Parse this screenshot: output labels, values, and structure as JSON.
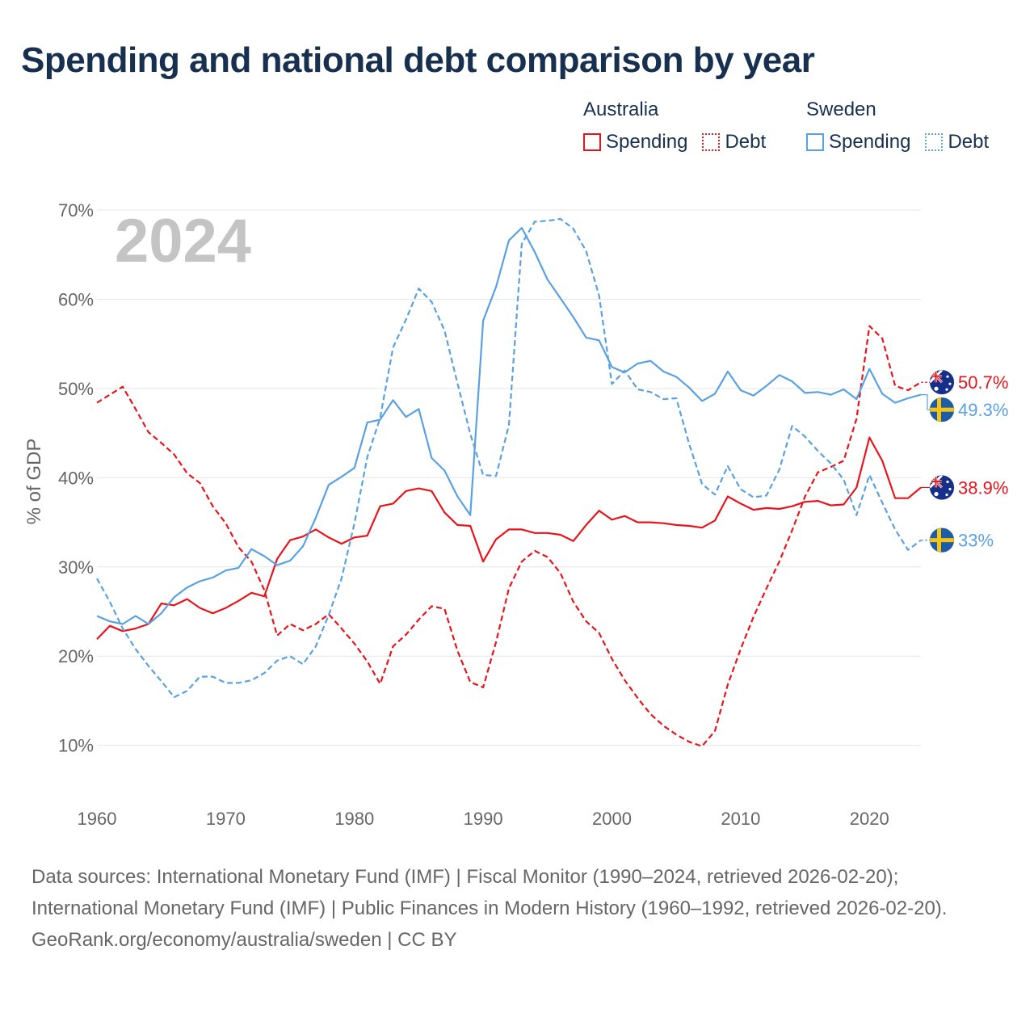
{
  "title": "Spending and national debt comparison by year",
  "legend": {
    "groups": [
      {
        "country": "Australia",
        "spending_label": "Spending",
        "debt_label": "Debt",
        "color": "#e8141b"
      },
      {
        "country": "Sweden",
        "spending_label": "Spending",
        "debt_label": "Debt",
        "color": "#5aa1e3"
      }
    ]
  },
  "year_watermark": "2024",
  "footer": {
    "sources": "Data sources: International Monetary Fund (IMF) | Fiscal Monitor (1990–2024, retrieved 2026-02-20); International Monetary Fund (IMF) | Public Finances in Modern History (1960–1992, retrieved 2026-02-20).",
    "credit": "GeoRank.org/economy/australia/sweden | CC BY"
  },
  "chart_data": {
    "type": "line",
    "title": "Spending and national debt comparison by year",
    "xlabel": "",
    "ylabel": "% of GDP",
    "xlim": [
      1960,
      2024
    ],
    "ylim": [
      3,
      70
    ],
    "xticks": [
      1960,
      1970,
      1980,
      1990,
      2000,
      2010,
      2020
    ],
    "yticks": [
      10,
      20,
      30,
      40,
      50,
      60,
      70
    ],
    "ytick_labels": [
      "10%",
      "20%",
      "30%",
      "40%",
      "50%",
      "60%",
      "70%"
    ],
    "grid": true,
    "series": [
      {
        "name": "Australia Spending",
        "country": "Australia",
        "color": "#e8141b",
        "dashed": false,
        "end_label": "38.9%",
        "flag": "australia-flag-icon",
        "x": [
          1960,
          1961,
          1962,
          1963,
          1964,
          1965,
          1966,
          1967,
          1968,
          1969,
          1970,
          1971,
          1972,
          1973,
          1974,
          1975,
          1976,
          1977,
          1978,
          1979,
          1980,
          1981,
          1982,
          1983,
          1984,
          1985,
          1986,
          1987,
          1988,
          1989,
          1990,
          1991,
          1992,
          1993,
          1994,
          1995,
          1996,
          1997,
          1998,
          1999,
          2000,
          2001,
          2002,
          2003,
          2004,
          2005,
          2006,
          2007,
          2008,
          2009,
          2010,
          2011,
          2012,
          2013,
          2014,
          2015,
          2016,
          2017,
          2018,
          2019,
          2020,
          2021,
          2022,
          2023,
          2024
        ],
        "y": [
          21.9,
          23.4,
          22.8,
          23.1,
          23.6,
          25.9,
          25.7,
          26.4,
          25.4,
          24.8,
          25.4,
          26.2,
          27.1,
          26.7,
          30.9,
          33.0,
          33.4,
          34.2,
          33.3,
          32.6,
          33.3,
          33.5,
          36.8,
          37.1,
          38.5,
          38.8,
          38.5,
          36.1,
          34.7,
          34.6,
          30.6,
          33.1,
          34.2,
          34.2,
          33.8,
          33.8,
          33.6,
          32.9,
          34.7,
          36.3,
          35.3,
          35.7,
          35.0,
          35.0,
          34.9,
          34.7,
          34.6,
          34.4,
          35.2,
          37.9,
          37.1,
          36.4,
          36.6,
          36.5,
          36.8,
          37.3,
          37.4,
          36.9,
          37.0,
          38.9,
          44.5,
          41.9,
          37.7,
          37.7,
          38.9
        ]
      },
      {
        "name": "Australia Debt",
        "country": "Australia",
        "color": "#e8141b",
        "dashed": true,
        "end_label": "50.7%",
        "flag": "australia-flag-icon",
        "x": [
          1960,
          1961,
          1962,
          1963,
          1964,
          1965,
          1966,
          1967,
          1968,
          1969,
          1970,
          1971,
          1972,
          1973,
          1974,
          1975,
          1976,
          1977,
          1978,
          1979,
          1980,
          1981,
          1982,
          1983,
          1984,
          1985,
          1986,
          1987,
          1988,
          1989,
          1990,
          1991,
          1992,
          1993,
          1994,
          1995,
          1996,
          1997,
          1998,
          1999,
          2000,
          2001,
          2002,
          2003,
          2004,
          2005,
          2006,
          2007,
          2008,
          2009,
          2010,
          2011,
          2012,
          2013,
          2014,
          2015,
          2016,
          2017,
          2018,
          2019,
          2020,
          2021,
          2022,
          2023,
          2024
        ],
        "y": [
          48.4,
          49.3,
          50.2,
          47.7,
          45.1,
          43.9,
          42.6,
          40.5,
          39.4,
          36.8,
          34.9,
          32.2,
          30.6,
          27.4,
          22.3,
          23.6,
          22.9,
          23.6,
          24.7,
          23.1,
          21.4,
          19.4,
          16.9,
          21.1,
          22.4,
          24.1,
          25.6,
          25.3,
          20.6,
          17.1,
          16.5,
          21.6,
          27.6,
          30.6,
          31.8,
          31.1,
          29.3,
          26.1,
          23.9,
          22.6,
          19.7,
          17.3,
          15.3,
          13.5,
          12.2,
          11.2,
          10.4,
          9.9,
          11.6,
          16.8,
          20.8,
          24.4,
          27.6,
          30.6,
          34.1,
          37.9,
          40.6,
          41.2,
          41.9,
          46.6,
          57.0,
          55.6,
          50.3,
          49.8,
          50.7
        ]
      },
      {
        "name": "Sweden Spending",
        "country": "Sweden",
        "color": "#5aa1e3",
        "dashed": false,
        "end_label": "49.3%",
        "flag": "sweden-flag-icon",
        "x": [
          1960,
          1961,
          1962,
          1963,
          1964,
          1965,
          1966,
          1967,
          1968,
          1969,
          1970,
          1971,
          1972,
          1973,
          1974,
          1975,
          1976,
          1977,
          1978,
          1979,
          1980,
          1981,
          1982,
          1983,
          1984,
          1985,
          1986,
          1987,
          1988,
          1989,
          1990,
          1991,
          1992,
          1993,
          1994,
          1995,
          1996,
          1997,
          1998,
          1999,
          2000,
          2001,
          2002,
          2003,
          2004,
          2005,
          2006,
          2007,
          2008,
          2009,
          2010,
          2011,
          2012,
          2013,
          2014,
          2015,
          2016,
          2017,
          2018,
          2019,
          2020,
          2021,
          2022,
          2023,
          2024
        ],
        "y": [
          24.5,
          23.9,
          23.6,
          24.5,
          23.6,
          24.8,
          26.6,
          27.7,
          28.4,
          28.8,
          29.6,
          29.9,
          32.0,
          31.2,
          30.2,
          30.7,
          32.3,
          35.5,
          39.2,
          40.1,
          41.1,
          46.2,
          46.5,
          48.7,
          46.8,
          47.7,
          42.2,
          40.8,
          37.9,
          35.8,
          57.6,
          61.4,
          66.6,
          68.0,
          65.3,
          62.2,
          60.1,
          58.0,
          55.7,
          55.4,
          52.4,
          51.8,
          52.8,
          53.1,
          51.9,
          51.3,
          50.1,
          48.6,
          49.4,
          51.9,
          49.8,
          49.2,
          50.3,
          51.5,
          50.8,
          49.5,
          49.6,
          49.3,
          49.9,
          48.8,
          52.2,
          49.4,
          48.4,
          48.9,
          49.3
        ]
      },
      {
        "name": "Sweden Debt",
        "country": "Sweden",
        "color": "#5aa1e3",
        "dashed": true,
        "end_label": "33%",
        "flag": "sweden-flag-icon",
        "x": [
          1960,
          1961,
          1962,
          1963,
          1964,
          1965,
          1966,
          1967,
          1968,
          1969,
          1970,
          1971,
          1972,
          1973,
          1974,
          1975,
          1976,
          1977,
          1978,
          1979,
          1980,
          1981,
          1982,
          1983,
          1984,
          1985,
          1986,
          1987,
          1988,
          1989,
          1990,
          1991,
          1992,
          1993,
          1994,
          1995,
          1996,
          1997,
          1998,
          1999,
          2000,
          2001,
          2002,
          2003,
          2004,
          2005,
          2006,
          2007,
          2008,
          2009,
          2010,
          2011,
          2012,
          2013,
          2014,
          2015,
          2016,
          2017,
          2018,
          2019,
          2020,
          2021,
          2022,
          2023,
          2024
        ],
        "y": [
          28.7,
          26.1,
          23.1,
          20.8,
          18.9,
          17.2,
          15.4,
          16.1,
          17.7,
          17.7,
          17.0,
          17.0,
          17.3,
          18.1,
          19.5,
          20.0,
          19.1,
          21.1,
          24.6,
          28.7,
          34.9,
          42.3,
          46.7,
          54.6,
          57.7,
          61.2,
          59.7,
          56.5,
          50.6,
          44.9,
          40.3,
          40.2,
          45.9,
          66.2,
          68.7,
          68.8,
          69.0,
          67.9,
          65.4,
          60.4,
          50.5,
          52.0,
          49.9,
          49.6,
          48.8,
          48.9,
          43.8,
          39.3,
          38.1,
          41.3,
          38.7,
          37.8,
          38.0,
          40.9,
          45.8,
          44.6,
          43.0,
          41.6,
          39.8,
          35.8,
          40.3,
          37.2,
          34.2,
          31.9,
          33.0
        ]
      }
    ]
  }
}
